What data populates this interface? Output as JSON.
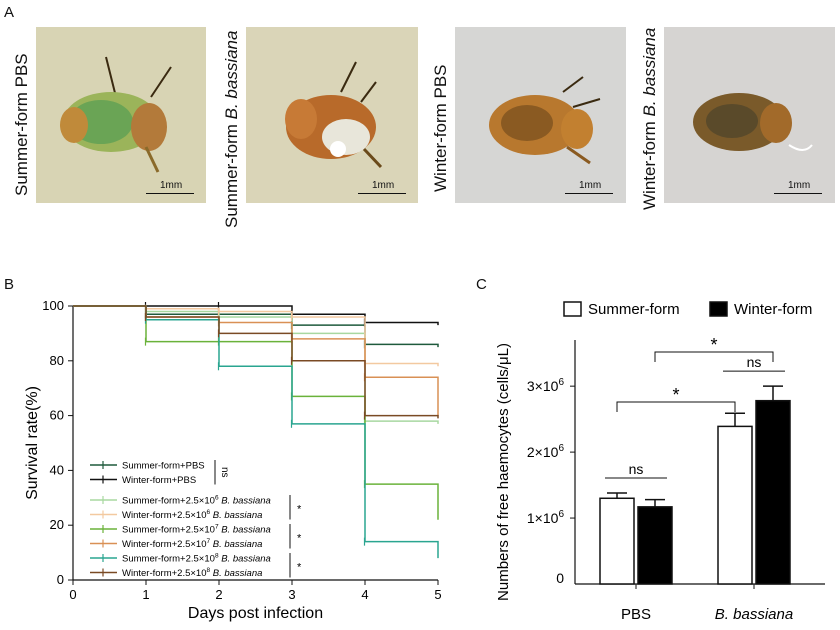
{
  "panel_a": {
    "label": "A",
    "photos": [
      {
        "caption_prefix": "Summer-form",
        "caption_species": "",
        "caption_suffix": " PBS",
        "scale": "1mm"
      },
      {
        "caption_prefix": "Summer-form ",
        "caption_species": "B. bassiana",
        "caption_suffix": "",
        "scale": "1mm"
      },
      {
        "caption_prefix": "Winter-form",
        "caption_species": "",
        "caption_suffix": " PBS",
        "scale": "1mm"
      },
      {
        "caption_prefix": "Winter-form ",
        "caption_species": "B. bassiana",
        "caption_suffix": "",
        "scale": "1mm"
      }
    ]
  },
  "chart_data": [
    {
      "type": "line",
      "panel": "B",
      "xlabel": "Days post infection",
      "ylabel": "Survival rate(%)",
      "xlim": [
        0,
        5
      ],
      "ylim": [
        0,
        100
      ],
      "xticks": [
        "0",
        "1",
        "2",
        "3",
        "4",
        "5"
      ],
      "yticks": [
        "0",
        "20",
        "40",
        "60",
        "80",
        "100"
      ],
      "step": true,
      "x": [
        0,
        1,
        2,
        3,
        4,
        5
      ],
      "series": [
        {
          "name": "Summer-form+PBS",
          "color": "#1f5a3c",
          "values": [
            100,
            97,
            97,
            93,
            86,
            85
          ]
        },
        {
          "name": "Winter-form+PBS",
          "color": "#111111",
          "values": [
            100,
            100,
            100,
            97,
            94,
            93
          ]
        },
        {
          "name_prefix": "Summer-form+2.5×10",
          "exp": "6",
          "species": " B. bassiana",
          "color": "#a8d8a0",
          "values": [
            100,
            98,
            96,
            90,
            58,
            57
          ]
        },
        {
          "name_prefix": "Winter-form+2.5×10",
          "exp": "6",
          "species": " B. bassiana",
          "color": "#f3c9a0",
          "values": [
            100,
            99,
            98,
            96,
            79,
            78
          ]
        },
        {
          "name_prefix": "Summer-form+2.5×10",
          "exp": "7",
          "species": " B. bassiana",
          "color": "#6ab23a",
          "values": [
            100,
            87,
            87,
            67,
            35,
            22
          ]
        },
        {
          "name_prefix": "Winter-form+2.5×10",
          "exp": "7",
          "species": " B. bassiana",
          "color": "#d99055",
          "values": [
            100,
            96,
            94,
            88,
            74,
            60
          ]
        },
        {
          "name_prefix": "Summer-form+2.5×10",
          "exp": "8",
          "species": " B. bassiana",
          "color": "#2aa590",
          "values": [
            100,
            95,
            78,
            57,
            14,
            8
          ]
        },
        {
          "name_prefix": "Winter-form+2.5×10",
          "exp": "8",
          "species": " B. bassiana",
          "color": "#7a4a24",
          "values": [
            100,
            96,
            90,
            80,
            60,
            59
          ]
        }
      ],
      "significance": [
        {
          "between": [
            0,
            1
          ],
          "label": "ns"
        },
        {
          "between": [
            2,
            3
          ],
          "label": "*"
        },
        {
          "between": [
            4,
            5
          ],
          "label": "*"
        },
        {
          "between": [
            6,
            7
          ],
          "label": "*"
        }
      ]
    },
    {
      "type": "bar",
      "panel": "C",
      "ylabel": "Numbers of free haemocytes (cells/μL)",
      "categories": [
        "PBS",
        "B. bassiana"
      ],
      "yticks": [
        {
          "v": 0,
          "label": "0"
        },
        {
          "v": 1000000,
          "base": "1×10",
          "exp": "6"
        },
        {
          "v": 2000000,
          "base": "2×10",
          "exp": "6"
        },
        {
          "v": 3000000,
          "base": "3×10",
          "exp": "6"
        }
      ],
      "ylim": [
        0,
        3700000
      ],
      "series": [
        {
          "name": "Summer-form",
          "fill": "#ffffff",
          "values": [
            1300000,
            2390000
          ],
          "errors": [
            80000,
            200000
          ]
        },
        {
          "name": "Winter-form",
          "fill": "#000000",
          "values": [
            1170000,
            2780000
          ],
          "errors": [
            110000,
            220000
          ]
        }
      ],
      "significance": [
        {
          "type": "within",
          "group": 0,
          "label": "ns"
        },
        {
          "type": "within",
          "group": 1,
          "label": "ns"
        },
        {
          "type": "across",
          "series": 0,
          "label": "*"
        },
        {
          "type": "across",
          "series": 1,
          "label": "*"
        }
      ]
    }
  ]
}
